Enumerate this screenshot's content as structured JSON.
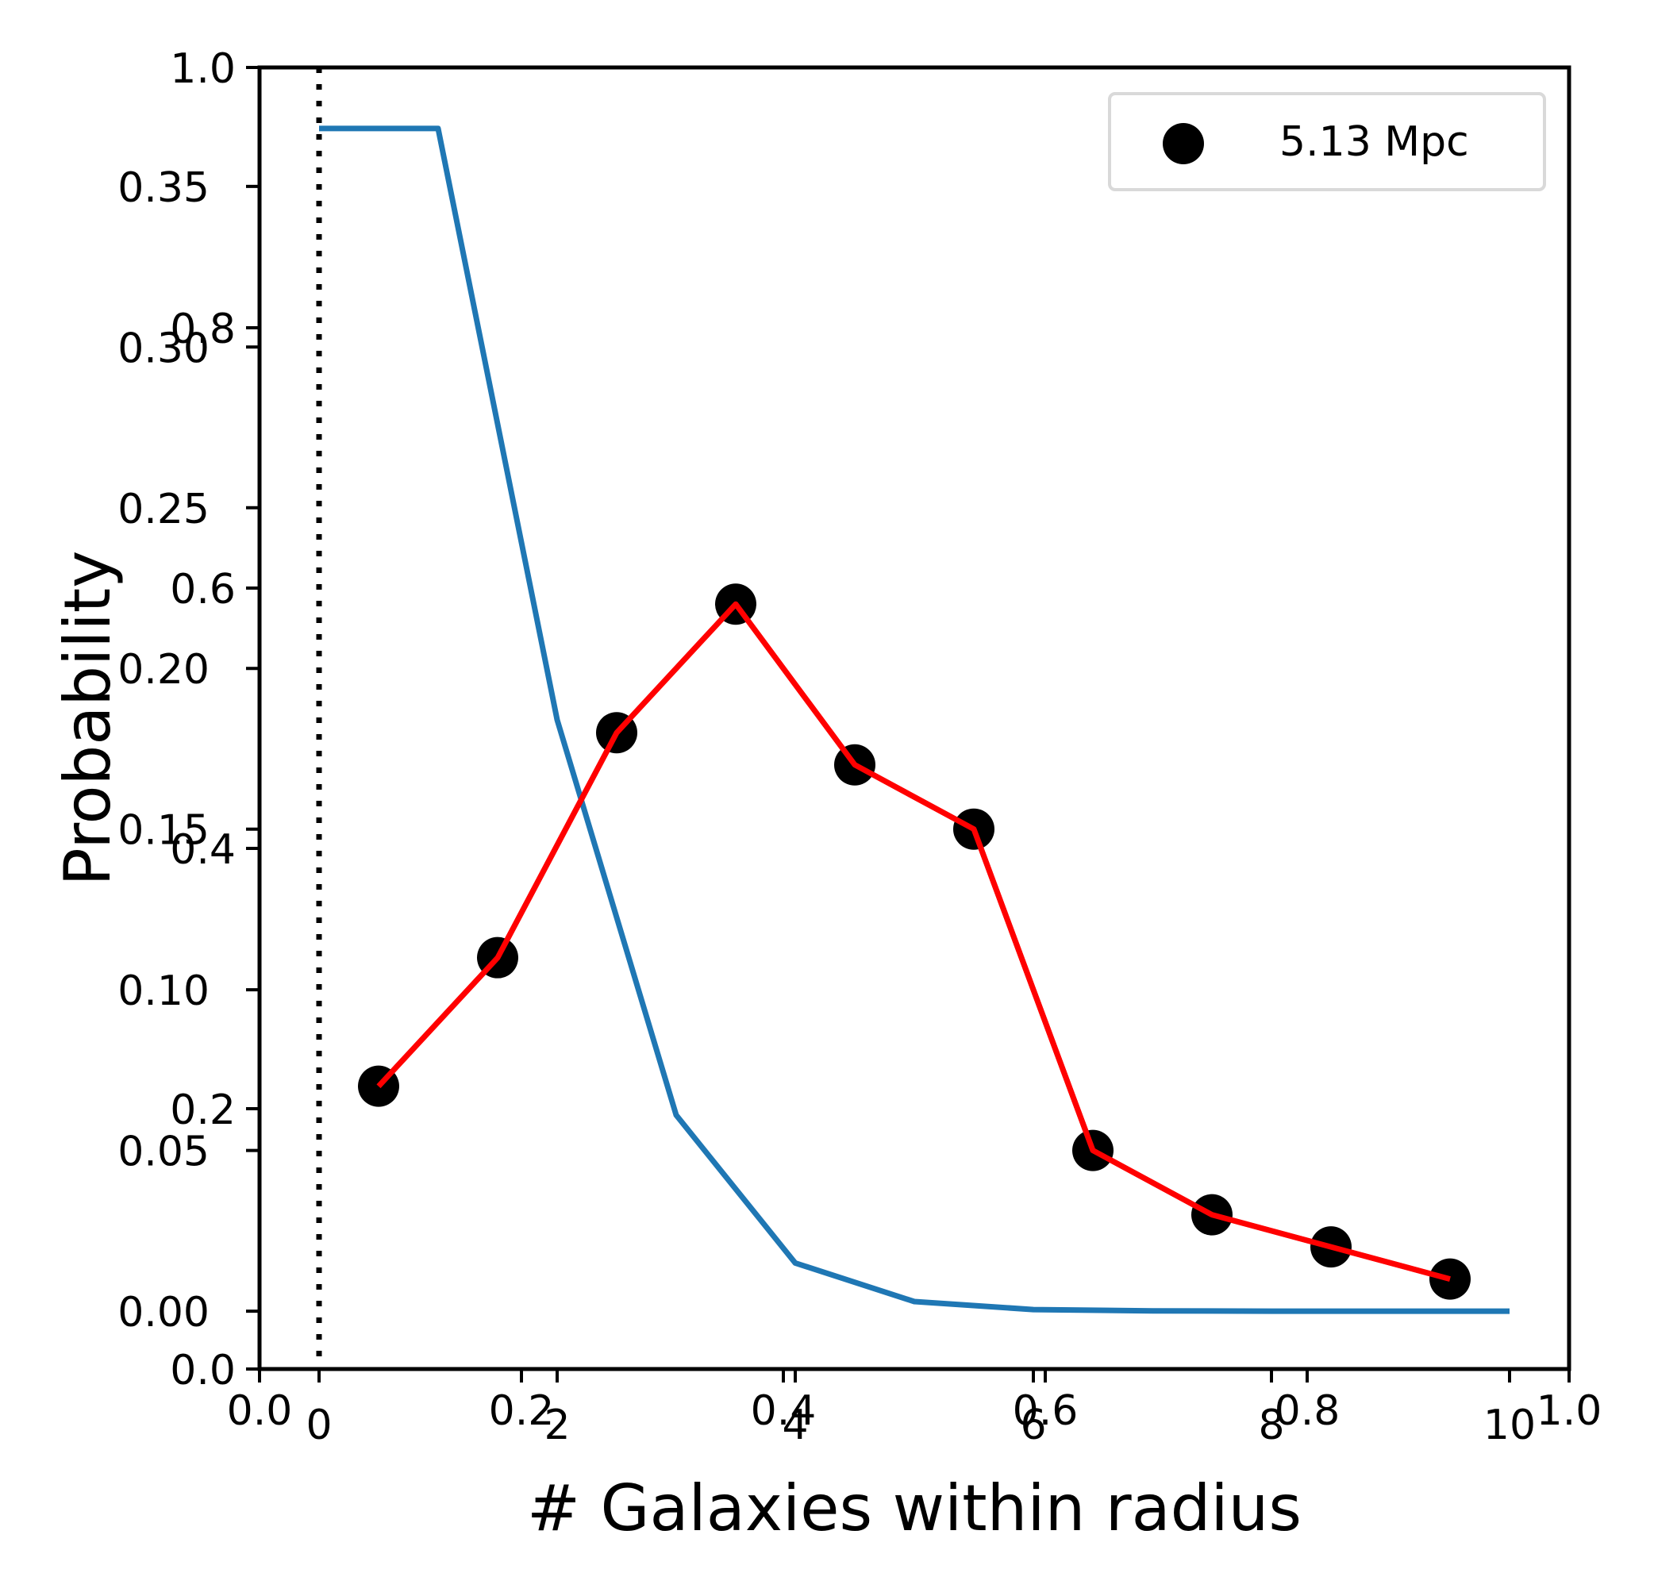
{
  "chart_data": {
    "type": "line",
    "title": "",
    "xlabel": "# Galaxies within radius",
    "ylabel": "Probability",
    "xlim": [
      -0.5,
      10.5
    ],
    "ylim": [
      -0.018,
      0.387
    ],
    "xticks": [
      0,
      2,
      4,
      6,
      8,
      10
    ],
    "xtick_labels": [
      "0",
      "2",
      "4",
      "6",
      "8",
      "10"
    ],
    "yticks": [
      0.0,
      0.05,
      0.1,
      0.15,
      0.2,
      0.25,
      0.3,
      0.35
    ],
    "ytick_labels": [
      "0.00",
      "0.05",
      "0.10",
      "0.15",
      "0.20",
      "0.25",
      "0.30",
      "0.35"
    ],
    "overlay_axes": {
      "xticks": [
        0.0,
        0.2,
        0.4,
        0.6,
        0.8,
        1.0
      ],
      "xtick_labels": [
        "0.0",
        "0.2",
        "0.4",
        "0.6",
        "0.8",
        "1.0"
      ],
      "yticks": [
        0.0,
        0.2,
        0.4,
        0.6,
        0.8,
        1.0
      ],
      "ytick_labels": [
        "0.0",
        "0.2",
        "0.4",
        "0.6",
        "0.8",
        "1.0"
      ]
    },
    "vline": {
      "x": 0,
      "style": "dotted",
      "color": "#000000"
    },
    "series": [
      {
        "kind": "line",
        "color": "#1f77b4",
        "x": [
          0,
          1,
          2,
          3,
          4,
          5,
          6,
          7,
          8,
          9,
          10
        ],
        "y": [
          0.368,
          0.368,
          0.184,
          0.061,
          0.015,
          0.003,
          0.0005,
          0.0001,
          0.0,
          0.0,
          0.0
        ]
      },
      {
        "kind": "line",
        "color": "#ff0000",
        "x": [
          0.5,
          1.5,
          2.5,
          3.5,
          4.5,
          5.5,
          6.5,
          7.5,
          8.5,
          9.5
        ],
        "y": [
          0.07,
          0.11,
          0.18,
          0.22,
          0.17,
          0.15,
          0.05,
          0.03,
          0.02,
          0.01
        ]
      },
      {
        "kind": "scatter",
        "name": "5.13 Mpc",
        "color": "#000000",
        "x": [
          0.5,
          1.5,
          2.5,
          3.5,
          4.5,
          5.5,
          6.5,
          7.5,
          8.5,
          9.5
        ],
        "y": [
          0.07,
          0.11,
          0.18,
          0.22,
          0.17,
          0.15,
          0.05,
          0.03,
          0.02,
          0.01
        ]
      }
    ],
    "legend": {
      "placement": "top-right",
      "entries": [
        "5.13 Mpc"
      ]
    },
    "grid": false
  }
}
